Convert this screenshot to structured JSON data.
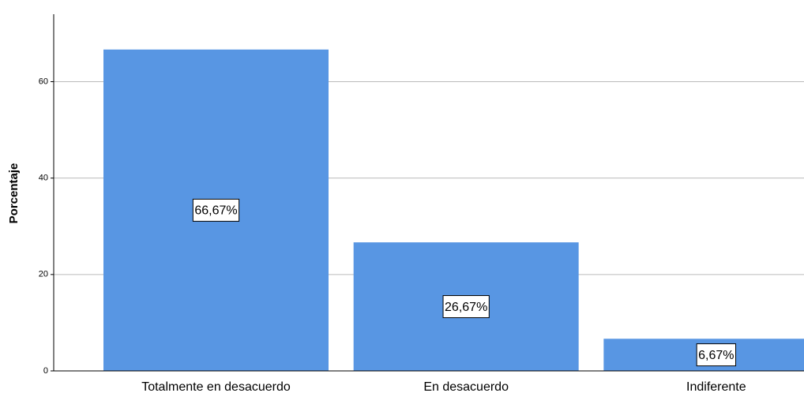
{
  "chart_data": {
    "type": "bar",
    "ylabel": "Porcentaje",
    "categories": [
      "Totalmente en desacuerdo",
      "En desacuerdo",
      "Indiferente"
    ],
    "values": [
      66.67,
      26.67,
      6.67
    ],
    "value_labels": [
      "66,67%",
      "26,67%",
      "6,67%"
    ],
    "color": "#5896e3",
    "ylim": [
      0,
      74
    ],
    "yticks": [
      0,
      20,
      40,
      60
    ],
    "grid": true
  }
}
